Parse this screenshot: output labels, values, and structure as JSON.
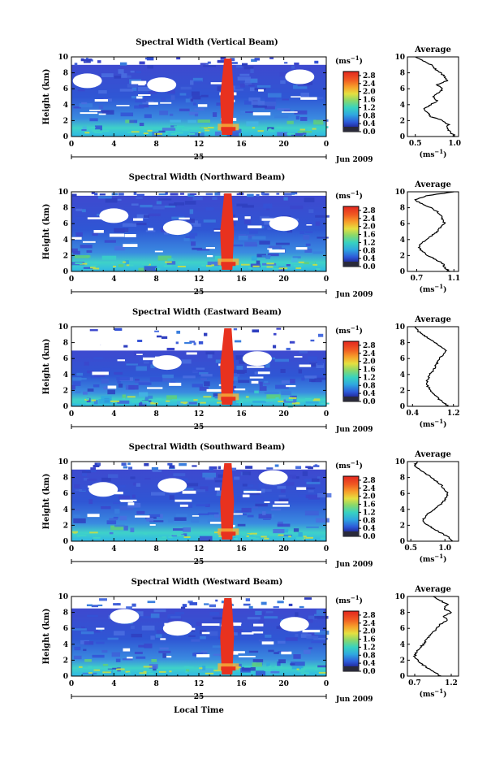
{
  "figure": {
    "x_axis_label": "Local Time",
    "y_axis_label": "Height (km)",
    "date_suffix": "Jun 2009",
    "date_day": "25",
    "colorbar_unit_base": "(ms",
    "colorbar_unit_exp": "−1",
    "colorbar_unit_close": ")",
    "average_title": "Average",
    "average_unit_base": "(ms",
    "average_unit_exp": "−1",
    "average_unit_close": ")"
  },
  "chart_data": [
    {
      "type": "heatmap",
      "title": "Spectral Width (Vertical Beam)",
      "xlabel": "",
      "ylabel": "Height (km)",
      "x_ticks": [
        "0",
        "4",
        "8",
        "12",
        "16",
        "20",
        "0"
      ],
      "xlim": [
        0,
        24
      ],
      "ylim": [
        0,
        10
      ],
      "y_ticks": [
        "0",
        "2",
        "4",
        "6",
        "8",
        "10"
      ],
      "colorbar_ticks": [
        "0.0",
        "0.4",
        "0.8",
        "1.2",
        "1.6",
        "2.0",
        "2.4",
        "2.8"
      ],
      "colorbar_range": [
        0,
        3.0
      ],
      "top_km": 9.0,
      "holes": [
        [
          1.5,
          7.0
        ],
        [
          8.5,
          6.5
        ],
        [
          21.5,
          7.5
        ]
      ],
      "average_profile": {
        "xlabel": "(ms−1)",
        "xlim": [
          0.7,
          1.0
        ],
        "x_ticks": [
          "0.5",
          "1.0"
        ],
        "x_tick_values": [
          0.5,
          1.0
        ],
        "xrange": [
          0.4,
          1.05
        ],
        "height": [
          0,
          0.5,
          1,
          1.5,
          2,
          2.5,
          3,
          3.5,
          4,
          4.5,
          5,
          5.5,
          6,
          6.5,
          7,
          7.5,
          8,
          8.5,
          9,
          9.5,
          10
        ],
        "width": [
          1.0,
          0.95,
          0.9,
          0.92,
          0.85,
          0.7,
          0.65,
          0.62,
          0.7,
          0.78,
          0.72,
          0.8,
          0.85,
          0.78,
          0.9,
          0.88,
          0.82,
          0.75,
          0.7,
          0.6,
          0.5
        ]
      }
    },
    {
      "type": "heatmap",
      "title": "Spectral Width (Northward Beam)",
      "xlabel": "",
      "ylabel": "Height (km)",
      "x_ticks": [
        "0",
        "4",
        "8",
        "12",
        "16",
        "20",
        "0"
      ],
      "xlim": [
        0,
        24
      ],
      "ylim": [
        0,
        10
      ],
      "y_ticks": [
        "0",
        "2",
        "4",
        "6",
        "8",
        "10"
      ],
      "colorbar_ticks": [
        "0.0",
        "0.4",
        "0.8",
        "1.2",
        "1.6",
        "2.0",
        "2.4",
        "2.8"
      ],
      "colorbar_range": [
        0,
        3.0
      ],
      "top_km": 9.5,
      "holes": [
        [
          4.0,
          7.0
        ],
        [
          10.0,
          5.5
        ],
        [
          20.0,
          6.0
        ]
      ],
      "average_profile": {
        "xlabel": "(ms−1)",
        "xlim": [
          0.7,
          1.1
        ],
        "x_ticks": [
          "0.7",
          "1.1"
        ],
        "x_tick_values": [
          0.7,
          1.1
        ],
        "xrange": [
          0.6,
          1.15
        ],
        "height": [
          0,
          0.5,
          1,
          1.5,
          2,
          2.5,
          3,
          3.5,
          4,
          4.5,
          5,
          5.5,
          6,
          6.5,
          7,
          7.5,
          8,
          8.5,
          9,
          9.5,
          10
        ],
        "width": [
          1.05,
          1.0,
          0.98,
          0.9,
          0.82,
          0.76,
          0.72,
          0.75,
          0.8,
          0.86,
          0.92,
          0.95,
          1.0,
          0.98,
          0.96,
          0.92,
          0.85,
          0.75,
          0.68,
          0.8,
          1.1
        ]
      }
    },
    {
      "type": "heatmap",
      "title": "Spectral Width (Eastward Beam)",
      "xlabel": "",
      "ylabel": "Height (km)",
      "x_ticks": [
        "0",
        "4",
        "8",
        "12",
        "16",
        "20",
        "0"
      ],
      "xlim": [
        0,
        24
      ],
      "ylim": [
        0,
        10
      ],
      "y_ticks": [
        "0",
        "2",
        "4",
        "6",
        "8",
        "10"
      ],
      "colorbar_ticks": [
        "0.0",
        "0.4",
        "0.8",
        "1.2",
        "1.6",
        "2.0",
        "2.4",
        "2.8"
      ],
      "colorbar_range": [
        0,
        3.0
      ],
      "top_km": 7.0,
      "holes": [
        [
          2.0,
          8.5
        ],
        [
          9.0,
          5.5
        ],
        [
          17.5,
          6.0
        ]
      ],
      "average_profile": {
        "xlabel": "(ms−1)",
        "xlim": [
          0.4,
          1.2
        ],
        "x_ticks": [
          "0.4",
          "1.2"
        ],
        "x_tick_values": [
          0.4,
          1.2
        ],
        "xrange": [
          0.3,
          1.3
        ],
        "height": [
          0,
          0.5,
          1,
          1.5,
          2,
          2.5,
          3,
          3.5,
          4,
          4.5,
          5,
          5.5,
          6,
          6.5,
          7,
          7.5,
          8,
          8.5,
          9,
          9.5,
          10
        ],
        "width": [
          1.1,
          1.0,
          0.9,
          0.82,
          0.75,
          0.7,
          0.68,
          0.7,
          0.74,
          0.8,
          0.85,
          0.88,
          0.92,
          1.0,
          1.05,
          0.95,
          0.85,
          0.72,
          0.6,
          0.5,
          0.45
        ]
      }
    },
    {
      "type": "heatmap",
      "title": "Spectral Width (Southward Beam)",
      "xlabel": "",
      "ylabel": "Height (km)",
      "x_ticks": [
        "0",
        "4",
        "8",
        "12",
        "16",
        "20",
        "0"
      ],
      "xlim": [
        0,
        24
      ],
      "ylim": [
        0,
        10
      ],
      "y_ticks": [
        "0",
        "2",
        "4",
        "6",
        "8",
        "10"
      ],
      "colorbar_ticks": [
        "0.0",
        "0.4",
        "0.8",
        "1.2",
        "1.6",
        "2.0",
        "2.4",
        "2.8"
      ],
      "colorbar_range": [
        0,
        3.0
      ],
      "top_km": 9.0,
      "holes": [
        [
          3.0,
          6.5
        ],
        [
          9.5,
          7.0
        ],
        [
          19.0,
          8.0
        ]
      ],
      "average_profile": {
        "xlabel": "(ms−1)",
        "xlim": [
          0.6,
          1.0
        ],
        "x_ticks": [
          "0.5",
          "1.0"
        ],
        "x_tick_values": [
          0.5,
          1.0
        ],
        "xrange": [
          0.45,
          1.2
        ],
        "height": [
          0,
          0.5,
          1,
          1.5,
          2,
          2.5,
          3,
          3.5,
          4,
          4.5,
          5,
          5.5,
          6,
          6.5,
          7,
          7.5,
          8,
          8.5,
          9,
          9.5,
          10
        ],
        "width": [
          1.1,
          1.05,
          0.95,
          0.85,
          0.75,
          0.68,
          0.7,
          0.76,
          0.85,
          0.92,
          0.98,
          1.02,
          1.05,
          0.98,
          0.95,
          0.88,
          0.8,
          0.72,
          0.62,
          0.55,
          0.6
        ]
      }
    },
    {
      "type": "heatmap",
      "title": "Spectral Width (Westward Beam)",
      "xlabel": "Local Time",
      "ylabel": "Height (km)",
      "x_ticks": [
        "0",
        "4",
        "8",
        "12",
        "16",
        "20",
        "0"
      ],
      "xlim": [
        0,
        24
      ],
      "ylim": [
        0,
        10
      ],
      "y_ticks": [
        "0",
        "2",
        "4",
        "6",
        "8",
        "10"
      ],
      "colorbar_ticks": [
        "0.0",
        "0.4",
        "0.8",
        "1.2",
        "1.6",
        "2.0",
        "2.4",
        "2.8"
      ],
      "colorbar_range": [
        0,
        3.0
      ],
      "top_km": 8.5,
      "holes": [
        [
          5.0,
          7.5
        ],
        [
          10.0,
          6.0
        ],
        [
          21.0,
          6.5
        ]
      ],
      "average_profile": {
        "xlabel": "(ms−1)",
        "xlim": [
          0.7,
          1.2
        ],
        "x_ticks": [
          "0.7",
          "1.2"
        ],
        "x_tick_values": [
          0.7,
          1.2
        ],
        "xrange": [
          0.6,
          1.3
        ],
        "height": [
          0,
          0.5,
          1,
          1.5,
          2,
          2.5,
          3,
          3.5,
          4,
          4.5,
          5,
          5.5,
          6,
          6.5,
          7,
          7.5,
          8,
          8.5,
          9,
          9.5,
          10
        ],
        "width": [
          1.05,
          0.98,
          0.88,
          0.8,
          0.74,
          0.7,
          0.72,
          0.76,
          0.82,
          0.85,
          0.9,
          0.95,
          1.0,
          1.05,
          1.15,
          1.1,
          1.2,
          1.1,
          1.15,
          1.05,
          0.95
        ]
      }
    }
  ]
}
